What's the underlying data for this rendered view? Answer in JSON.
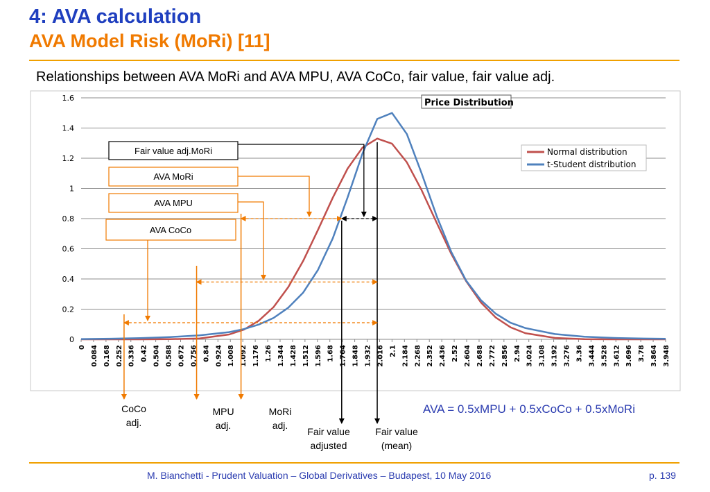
{
  "header": {
    "title": "4: AVA calculation",
    "subtitle": "AVA Model Risk (MoRi) [11]",
    "heading": "Relationships between AVA MoRi and AVA MPU, AVA CoCo, fair value, fair value adj."
  },
  "footer": {
    "text": "M. Bianchetti - Prudent Valuation – Global Derivatives – Budapest, 10 May 2016",
    "page": "p. 139"
  },
  "formula": "AVA = 0.5xMPU + 0.5xCoCo + 0.5xMoRi",
  "colors": {
    "accent_blue": "#1f3fbf",
    "accent_orange": "#f07a00",
    "normal_series": "#c0504d",
    "student_series": "#4f81bd",
    "annotation_orange": "#f07a00"
  },
  "annotations": {
    "fair_value_adj_mori": "Fair value adj.MoRi",
    "ava_mori": "AVA MoRi",
    "ava_mpu": "AVA MPU",
    "ava_coco": "AVA CoCo",
    "coco_adj": [
      "CoCo",
      "adj."
    ],
    "mpu_adj": [
      "MPU",
      "adj."
    ],
    "mori_adj": [
      "MoRi",
      "adj."
    ],
    "fair_value_adjusted": [
      "Fair value",
      "adjusted"
    ],
    "fair_value_mean": [
      "Fair value",
      "(mean)"
    ]
  },
  "annotation_values": {
    "coco_adj_x": 0.29,
    "mpu_adj_x": 0.78,
    "mori_adj_x": 1.08,
    "fair_value_adjusted_x": 1.76,
    "fair_value_mean_x": 2.0,
    "mori_ref_x": 1.91,
    "arrow_y_mori": 0.8,
    "arrow_y_mpu": 0.38,
    "arrow_y_coco": 0.11
  },
  "chart_data": {
    "type": "line",
    "title": "Price Distribution",
    "xlim": [
      0,
      3.948
    ],
    "ylim": [
      0,
      1.6
    ],
    "yticks": [
      "0",
      "0.2",
      "0.4",
      "0.6",
      "0.8",
      "1",
      "1.2",
      "1.4",
      "1.6"
    ],
    "xticks": [
      "0",
      "0.084",
      "0.168",
      "0.252",
      "0.336",
      "0.42",
      "0.504",
      "0.588",
      "0.672",
      "0.756",
      "0.84",
      "0.924",
      "1.008",
      "1.092",
      "1.176",
      "1.26",
      "1.344",
      "1.428",
      "1.512",
      "1.596",
      "1.68",
      "1.764",
      "1.848",
      "1.932",
      "2.016",
      "2.1",
      "2.184",
      "2.268",
      "2.352",
      "2.436",
      "2.52",
      "2.604",
      "2.688",
      "2.772",
      "2.856",
      "2.94",
      "3.024",
      "3.108",
      "3.192",
      "3.276",
      "3.36",
      "3.444",
      "3.528",
      "3.612",
      "3.696",
      "3.78",
      "3.864",
      "3.948"
    ],
    "grid": true,
    "legend_position": "right",
    "series": [
      {
        "name": "Normal distribution",
        "x": [
          0,
          0.2,
          0.4,
          0.6,
          0.8,
          1.0,
          1.1,
          1.2,
          1.3,
          1.4,
          1.5,
          1.6,
          1.7,
          1.8,
          1.9,
          2.0,
          2.1,
          2.2,
          2.3,
          2.4,
          2.5,
          2.6,
          2.7,
          2.8,
          2.9,
          3.0,
          3.2,
          3.4,
          3.6,
          3.8,
          3.948
        ],
        "y": [
          0,
          0,
          0,
          0.001,
          0.006,
          0.032,
          0.065,
          0.123,
          0.214,
          0.347,
          0.52,
          0.725,
          0.939,
          1.131,
          1.27,
          1.33,
          1.296,
          1.173,
          0.988,
          0.775,
          0.567,
          0.386,
          0.245,
          0.145,
          0.08,
          0.041,
          0.009,
          0.001,
          0,
          0,
          0
        ]
      },
      {
        "name": "t-Student distribution",
        "x": [
          0,
          0.2,
          0.4,
          0.6,
          0.8,
          1.0,
          1.1,
          1.2,
          1.3,
          1.4,
          1.5,
          1.6,
          1.7,
          1.8,
          1.9,
          2.0,
          2.1,
          2.2,
          2.3,
          2.4,
          2.5,
          2.6,
          2.7,
          2.8,
          2.9,
          3.0,
          3.2,
          3.4,
          3.6,
          3.8,
          3.948
        ],
        "y": [
          0.002,
          0.004,
          0.008,
          0.015,
          0.026,
          0.048,
          0.068,
          0.098,
          0.142,
          0.21,
          0.31,
          0.46,
          0.67,
          0.94,
          1.23,
          1.46,
          1.5,
          1.36,
          1.1,
          0.82,
          0.58,
          0.39,
          0.26,
          0.17,
          0.11,
          0.075,
          0.035,
          0.017,
          0.009,
          0.005,
          0.003
        ]
      }
    ]
  }
}
